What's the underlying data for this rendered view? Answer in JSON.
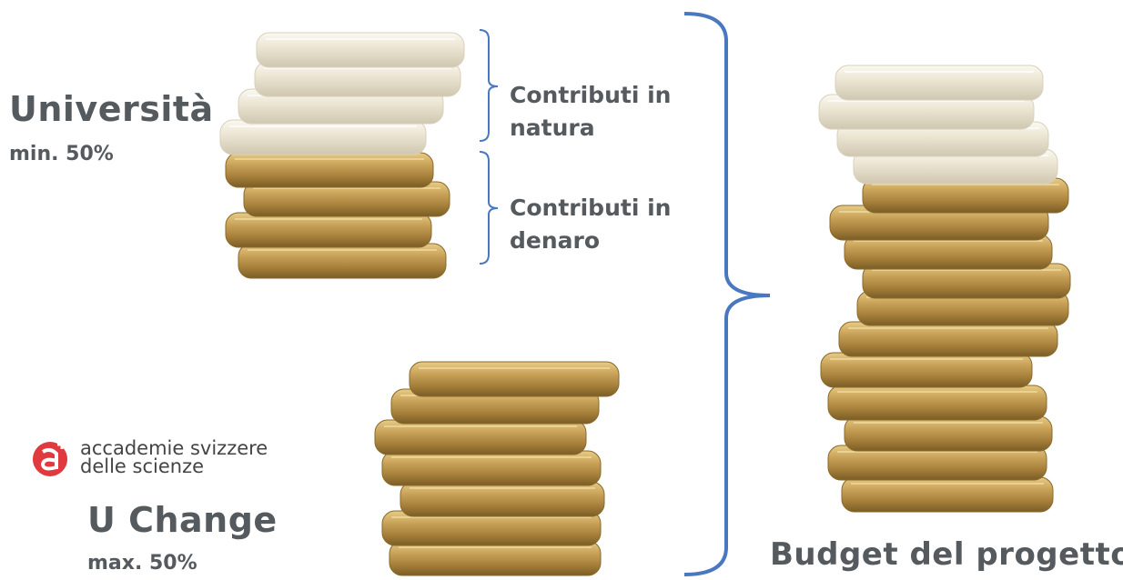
{
  "left_stack": {
    "title": "Università",
    "share": "min. 50%",
    "brackets": [
      {
        "label": "Contributi in natura"
      },
      {
        "label": "Contributi in denaro"
      }
    ]
  },
  "logo": {
    "line1": "accademie svizzere",
    "line2": "delle scienze"
  },
  "bottom_stack": {
    "title": "U Change",
    "share": "max. 50%"
  },
  "total": {
    "label": "Budget del progetto"
  }
}
